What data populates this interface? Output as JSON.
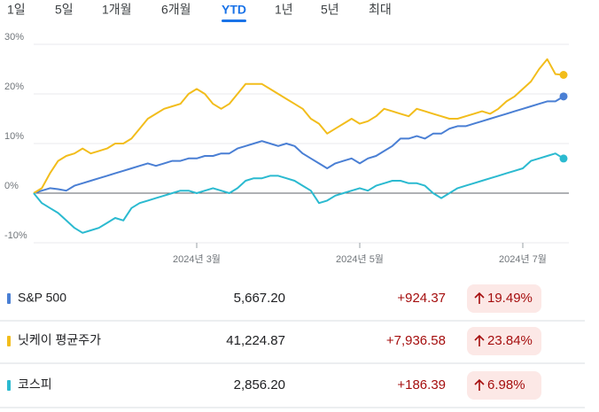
{
  "tabs": [
    "1일",
    "5일",
    "1개월",
    "6개월",
    "YTD",
    "1년",
    "5년",
    "최대"
  ],
  "selected_tab": 4,
  "chart_data": {
    "type": "line",
    "categories": [
      null,
      null,
      null,
      null,
      null,
      null,
      null,
      null,
      null,
      null,
      null,
      null,
      null,
      null,
      null,
      null,
      null,
      null,
      null,
      null,
      "2024년 3월",
      null,
      null,
      null,
      null,
      null,
      null,
      null,
      null,
      null,
      null,
      null,
      null,
      null,
      null,
      null,
      null,
      null,
      null,
      null,
      "2024년 5월",
      null,
      null,
      null,
      null,
      null,
      null,
      null,
      null,
      null,
      null,
      null,
      null,
      null,
      null,
      null,
      null,
      null,
      null,
      null,
      "2024년 7월",
      null,
      null,
      null,
      null,
      null
    ],
    "ylim": [
      -10,
      30
    ],
    "yticks": [
      {
        "value": -10,
        "label": "-10%"
      },
      {
        "value": 0,
        "label": "0%"
      },
      {
        "value": 10,
        "label": "10%"
      },
      {
        "value": 20,
        "label": "20%"
      },
      {
        "value": 30,
        "label": "30%"
      }
    ],
    "grid": true,
    "series": [
      {
        "name": "S&P 500",
        "color": "#4a7fd4",
        "values": [
          0,
          0.5,
          1,
          0.8,
          0.5,
          1.5,
          2,
          2.5,
          3,
          3.5,
          4,
          4.5,
          5,
          5.5,
          6,
          5.5,
          6,
          6.5,
          6.5,
          7,
          7,
          7.5,
          7.5,
          8,
          8,
          9,
          9.5,
          10,
          10.5,
          10,
          9.5,
          10,
          9.5,
          8,
          7,
          6,
          5,
          6,
          6.5,
          7,
          6,
          7,
          7.5,
          8.5,
          9.5,
          11,
          11,
          11.5,
          11,
          12,
          12,
          13,
          13.5,
          13.5,
          14,
          14.5,
          15,
          15.5,
          16,
          16.5,
          17,
          17.5,
          18,
          18.5,
          18.5,
          19.49
        ]
      },
      {
        "name": "닛케이 평균주가",
        "color": "#f2bd1c",
        "values": [
          0,
          1,
          4,
          6.5,
          7.5,
          8,
          9,
          8,
          8.5,
          9,
          10,
          10,
          11,
          13,
          15,
          16,
          17,
          17.5,
          18,
          20,
          21,
          20,
          18,
          17,
          18,
          20,
          22,
          22,
          22,
          21,
          20,
          19,
          18,
          17,
          15,
          14,
          12,
          13,
          14,
          15,
          14,
          14.5,
          15.5,
          17,
          16.5,
          16,
          15.5,
          17,
          16.5,
          16,
          15.5,
          15,
          15,
          15.5,
          16,
          16.5,
          16,
          17,
          18.5,
          19.5,
          21,
          22.5,
          25,
          27,
          24,
          23.84
        ]
      },
      {
        "name": "코스피",
        "color": "#2bbad0",
        "values": [
          0,
          -2,
          -3,
          -4,
          -5.5,
          -7,
          -8,
          -7.5,
          -7,
          -6,
          -5,
          -5.5,
          -3,
          -2,
          -1.5,
          -1,
          -0.5,
          0,
          0.5,
          0.5,
          0,
          0.5,
          1,
          0.5,
          0,
          1,
          2.5,
          3,
          3,
          3.5,
          3.5,
          3,
          2.5,
          1.5,
          0.5,
          -2,
          -1.5,
          -0.5,
          0,
          0.5,
          1,
          0.5,
          1.5,
          2,
          2.5,
          2.5,
          2,
          2,
          1.5,
          0,
          -1,
          0,
          1,
          1.5,
          2,
          2.5,
          3,
          3.5,
          4,
          4.5,
          5,
          6.5,
          7,
          7.5,
          8,
          6.98
        ]
      }
    ]
  },
  "table": {
    "rows": [
      [
        "S&P 500",
        "5,667.20",
        "+924.37",
        "19.49%"
      ],
      [
        "닛케이 평균주가",
        "41,224.87",
        "+7,936.58",
        "23.84%"
      ],
      [
        "코스피",
        "2,856.20",
        "+186.39",
        "6.98%"
      ]
    ]
  }
}
